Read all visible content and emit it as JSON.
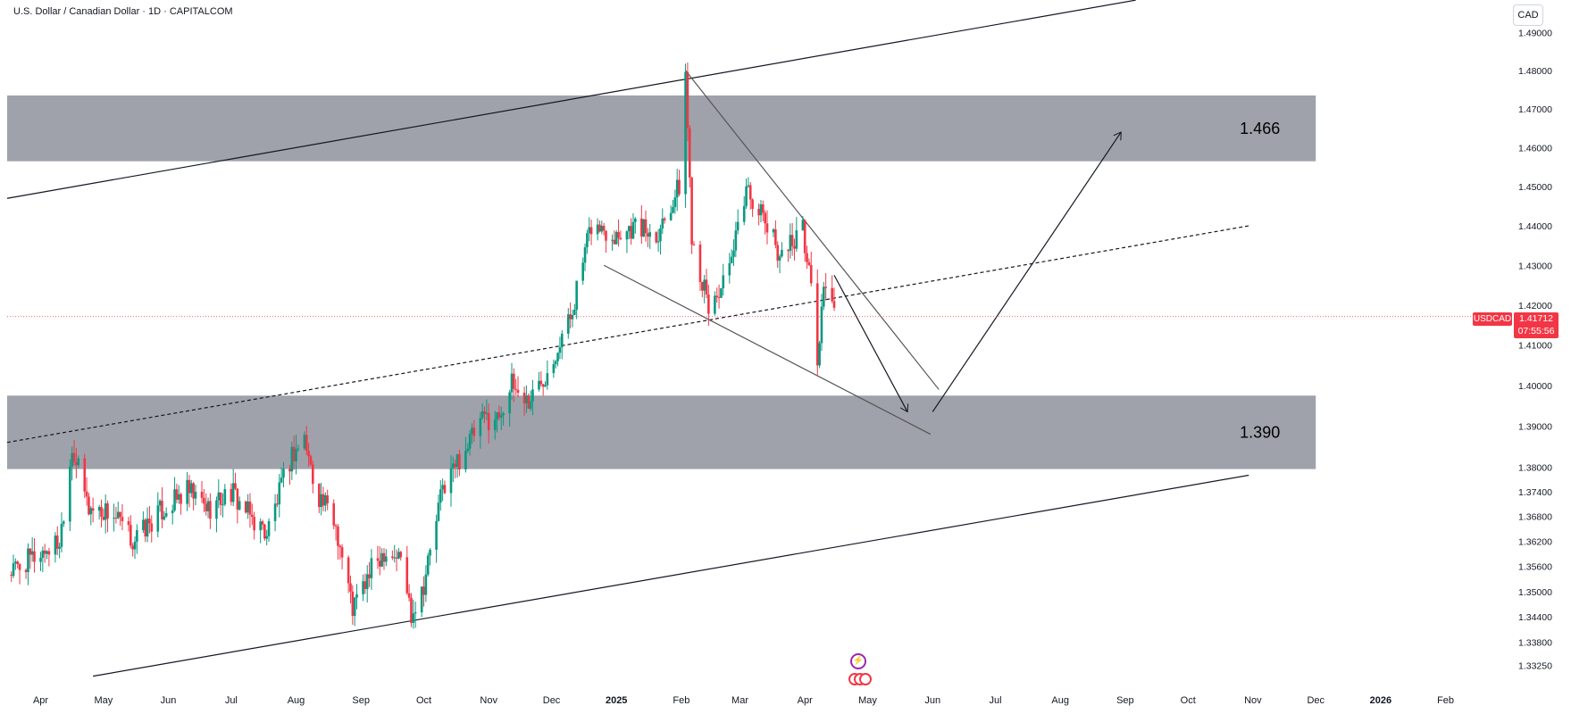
{
  "header": {
    "title": "U.S. Dollar / Canadian Dollar · 1D · CAPITALCOM",
    "currency_button": "CAD"
  },
  "price_tag": {
    "symbol": "USDCAD",
    "price": "1.41712",
    "countdown": "07:55:56"
  },
  "colors": {
    "up": "#089981",
    "down": "#f23645",
    "zone": "#9598a1",
    "line": "#131722",
    "price_line": "#f23645"
  },
  "icons": [
    "lightning-event-icon",
    "us-flag-events-icon"
  ],
  "chart_data": {
    "type": "candlestick",
    "title": "U.S. Dollar / Canadian Dollar · 1D · CAPITALCOM",
    "interval": "1D",
    "y_scale": "logarithmic",
    "ylim": [
      1.3295,
      1.495
    ],
    "x_range": [
      "2024-03-16",
      "2026-03-12"
    ],
    "last_price": 1.41712,
    "y_ticks": [
      "1.49000",
      "1.48000",
      "1.47000",
      "1.46000",
      "1.45000",
      "1.44000",
      "1.43000",
      "1.42000",
      "1.41000",
      "1.40000",
      "1.39000",
      "1.38000",
      "1.37400",
      "1.36800",
      "1.36200",
      "1.35600",
      "1.35000",
      "1.34400",
      "1.33800",
      "1.33250"
    ],
    "x_ticks": [
      {
        "label": "Apr",
        "date": "2024-04-01"
      },
      {
        "label": "May",
        "date": "2024-05-01"
      },
      {
        "label": "Jun",
        "date": "2024-06-01"
      },
      {
        "label": "Jul",
        "date": "2024-07-01"
      },
      {
        "label": "Aug",
        "date": "2024-08-01"
      },
      {
        "label": "Sep",
        "date": "2024-09-01"
      },
      {
        "label": "Oct",
        "date": "2024-10-01"
      },
      {
        "label": "Nov",
        "date": "2024-11-01"
      },
      {
        "label": "Dec",
        "date": "2024-12-01"
      },
      {
        "label": "2025",
        "date": "2025-01-01",
        "bold": true
      },
      {
        "label": "Feb",
        "date": "2025-02-01"
      },
      {
        "label": "Mar",
        "date": "2025-03-01"
      },
      {
        "label": "Apr",
        "date": "2025-04-01"
      },
      {
        "label": "May",
        "date": "2025-05-01"
      },
      {
        "label": "Jun",
        "date": "2025-06-01"
      },
      {
        "label": "Jul",
        "date": "2025-07-01"
      },
      {
        "label": "Aug",
        "date": "2025-08-01"
      },
      {
        "label": "Sep",
        "date": "2025-09-01"
      },
      {
        "label": "Oct",
        "date": "2025-10-01"
      },
      {
        "label": "Nov",
        "date": "2025-11-01"
      },
      {
        "label": "Dec",
        "date": "2025-12-01"
      },
      {
        "label": "2026",
        "date": "2026-01-01",
        "bold": true
      },
      {
        "label": "Feb",
        "date": "2026-02-01"
      }
    ],
    "price_path": [
      [
        "2024-03-16",
        1.354
      ],
      [
        "2024-03-28",
        1.358
      ],
      [
        "2024-04-10",
        1.362
      ],
      [
        "2024-04-16",
        1.385
      ],
      [
        "2024-04-24",
        1.37
      ],
      [
        "2024-05-05",
        1.369
      ],
      [
        "2024-05-15",
        1.362
      ],
      [
        "2024-05-28",
        1.369
      ],
      [
        "2024-06-10",
        1.374
      ],
      [
        "2024-06-20",
        1.37
      ],
      [
        "2024-07-01",
        1.374
      ],
      [
        "2024-07-10",
        1.368
      ],
      [
        "2024-07-18",
        1.364
      ],
      [
        "2024-07-30",
        1.383
      ],
      [
        "2024-08-05",
        1.387
      ],
      [
        "2024-08-10",
        1.375
      ],
      [
        "2024-08-20",
        1.366
      ],
      [
        "2024-08-28",
        1.346
      ],
      [
        "2024-09-06",
        1.355
      ],
      [
        "2024-09-12",
        1.36
      ],
      [
        "2024-09-20",
        1.358
      ],
      [
        "2024-09-25",
        1.345
      ],
      [
        "2024-10-01",
        1.352
      ],
      [
        "2024-10-10",
        1.375
      ],
      [
        "2024-10-20",
        1.384
      ],
      [
        "2024-10-30",
        1.392
      ],
      [
        "2024-11-05",
        1.392
      ],
      [
        "2024-11-12",
        1.4
      ],
      [
        "2024-11-20",
        1.396
      ],
      [
        "2024-11-28",
        1.403
      ],
      [
        "2024-12-10",
        1.417
      ],
      [
        "2024-12-20",
        1.44
      ],
      [
        "2024-12-31",
        1.438
      ],
      [
        "2025-01-10",
        1.44
      ],
      [
        "2025-01-20",
        1.438
      ],
      [
        "2025-01-31",
        1.45
      ],
      [
        "2025-02-03",
        1.479
      ],
      [
        "2025-02-06",
        1.438
      ],
      [
        "2025-02-14",
        1.419
      ],
      [
        "2025-02-24",
        1.428
      ],
      [
        "2025-03-04",
        1.45
      ],
      [
        "2025-03-12",
        1.442
      ],
      [
        "2025-03-20",
        1.433
      ],
      [
        "2025-03-31",
        1.439
      ],
      [
        "2025-04-04",
        1.425
      ],
      [
        "2025-04-07",
        1.405
      ],
      [
        "2025-04-10",
        1.426
      ],
      [
        "2025-04-15",
        1.4171
      ]
    ],
    "zones": [
      {
        "label": "1.466",
        "from": "2024-03-16",
        "to": "2025-12-01",
        "top": 1.4735,
        "bottom": 1.4565
      },
      {
        "label": "1.390",
        "from": "2024-03-16",
        "to": "2025-12-01",
        "top": 1.3975,
        "bottom": 1.3795
      }
    ],
    "trendlines": [
      {
        "name": "upper-channel",
        "from": [
          "2024-03-16",
          1.447
        ],
        "to": [
          "2025-09-06",
          1.4985
        ],
        "style": "solid"
      },
      {
        "name": "lower-channel",
        "from": [
          "2024-04-26",
          1.33
        ],
        "to": [
          "2025-10-30",
          1.378
        ],
        "style": "solid"
      },
      {
        "name": "mid-channel",
        "from": [
          "2024-03-16",
          1.386
        ],
        "to": [
          "2025-10-30",
          1.44
        ],
        "style": "dashed"
      },
      {
        "name": "wedge-upper",
        "from": [
          "2025-02-03",
          1.48
        ],
        "to": [
          "2025-06-04",
          1.399
        ],
        "style": "solid"
      },
      {
        "name": "wedge-lower",
        "from": [
          "2024-12-26",
          1.43
        ],
        "to": [
          "2025-05-31",
          1.388
        ],
        "style": "solid"
      }
    ],
    "projection": [
      [
        "2025-04-15",
        1.4275
      ],
      [
        "2025-05-20",
        1.3935
      ],
      [
        "2025-06-01",
        1.3935
      ],
      [
        "2025-08-30",
        1.464
      ]
    ]
  }
}
